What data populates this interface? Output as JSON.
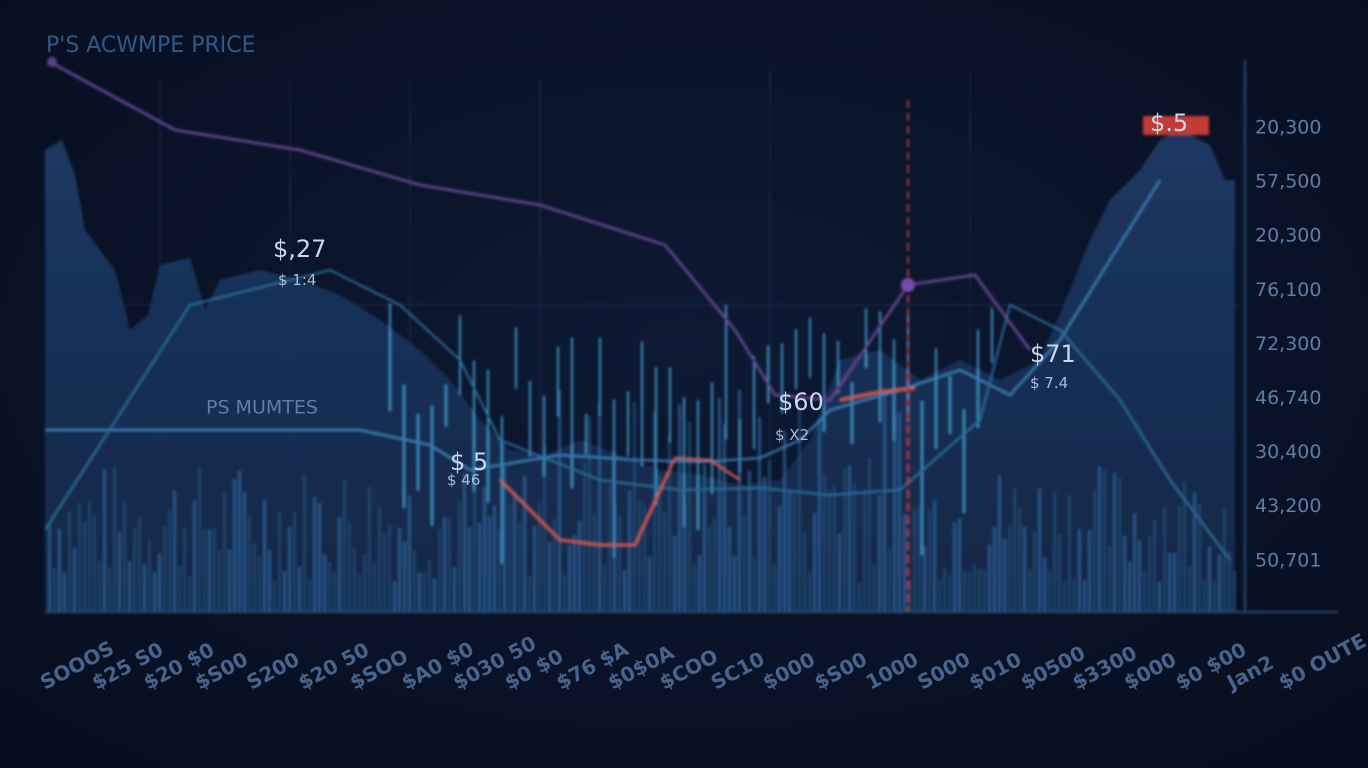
{
  "header": {
    "title": "P'S ACWMPE PRICE"
  },
  "annotations": [
    {
      "label": "$,27",
      "sub": "$ 1:4"
    },
    {
      "label": "PS MUMTES"
    },
    {
      "label": "$ 5",
      "sub": "$ 46"
    },
    {
      "label": "$60",
      "sub": "$ X2"
    },
    {
      "label": "$71",
      "sub": "$ 7.4"
    },
    {
      "label": "$.5"
    }
  ],
  "y_labels": [
    "20,300",
    "57,500",
    "20,300",
    "76,100",
    "72,300",
    "46,740",
    "30,400",
    "43,200",
    "50,701"
  ],
  "x_labels": [
    "SOOOS",
    "$25 S0",
    "$20 $0",
    "$S00",
    "S200",
    "$20 50",
    "$SOO",
    "$A0 $0",
    "$030 50",
    "$0 $0",
    "$76 $A",
    "$0$0A",
    "$COO",
    "SC10",
    "$000",
    "$S00",
    "1000",
    "S000",
    "$010",
    "$0500",
    "$3300",
    "$000",
    "$0 $00",
    "Jan2",
    "$0 OUTE"
  ]
}
